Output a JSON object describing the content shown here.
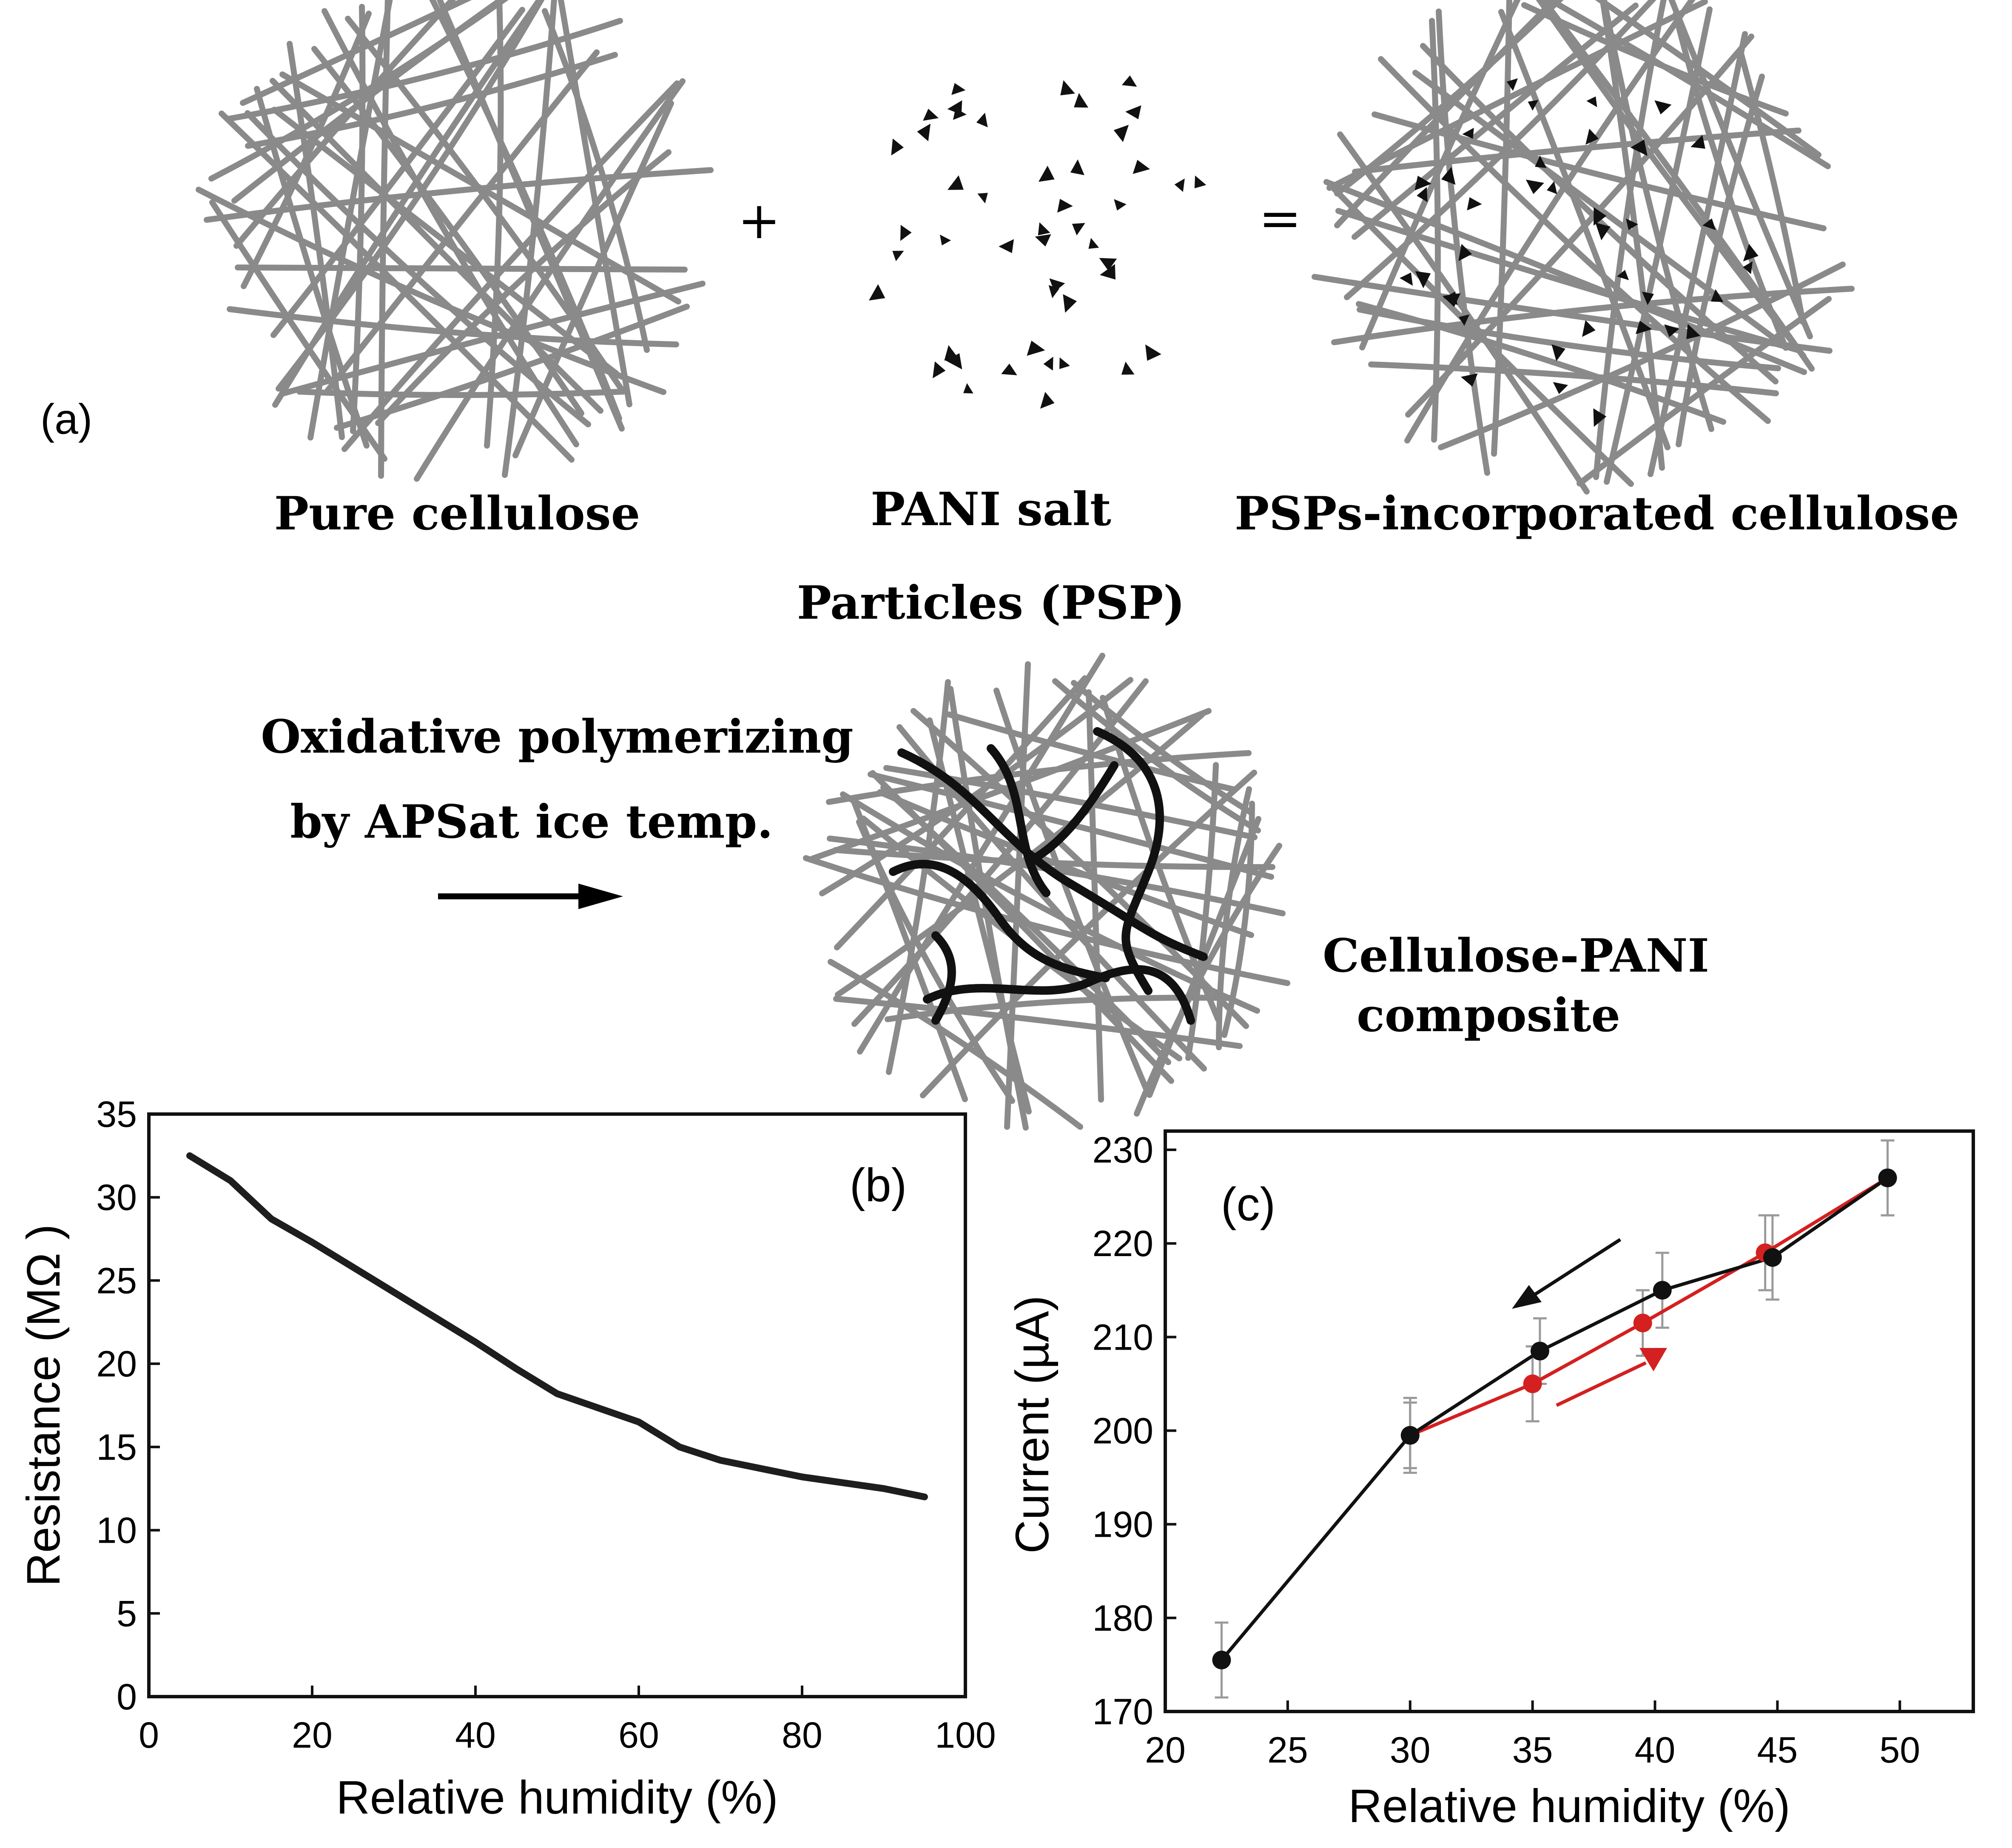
{
  "panel_a": {
    "label": "(a)",
    "plus": "+",
    "equals": "=",
    "pure_label": "Pure cellulose",
    "pani_label_1": "PANI salt",
    "pani_label_2": "Particles (PSP)",
    "psp_label": "PSPs-incorporated cellulose",
    "process_line_1": "Oxidative polymerizing",
    "process_line_2": "by APSat ice temp.",
    "composite_line_1": "Cellulose-PANI",
    "composite_line_2": "composite",
    "fiber_color": "#8a8a8a",
    "pani_color": "#111111"
  },
  "chart_data": [
    {
      "type": "line",
      "panel_label": "(b)",
      "xlabel": "Relative humidity (%)",
      "ylabel": "Resistance (MΩ )",
      "xlim": [
        0,
        100
      ],
      "ylim": [
        0,
        35
      ],
      "xticks": [
        0,
        20,
        40,
        60,
        80,
        100
      ],
      "yticks": [
        0,
        5,
        10,
        15,
        20,
        25,
        30,
        35
      ],
      "series": [
        {
          "name": "resistance",
          "color": "#1e1e1e",
          "x": [
            5,
            10,
            15,
            20,
            30,
            40,
            45,
            50,
            60,
            65,
            70,
            80,
            90,
            95
          ],
          "y": [
            32.5,
            31,
            28.7,
            27.3,
            24.3,
            21.3,
            19.7,
            18.2,
            16.5,
            15,
            14.2,
            13.2,
            12.5,
            12
          ]
        }
      ]
    },
    {
      "type": "scatter",
      "panel_label": "(c)",
      "xlabel": "Relative humidity (%)",
      "ylabel": "Current (µA)",
      "xlim": [
        20,
        53
      ],
      "ylim": [
        170,
        232
      ],
      "xticks": [
        20,
        25,
        30,
        35,
        40,
        45,
        50
      ],
      "yticks": [
        170,
        180,
        190,
        200,
        210,
        220,
        230
      ],
      "series": [
        {
          "name": "increasing humidity",
          "color": "#d42020",
          "x": [
            30,
            35,
            39.5,
            44.5,
            49.5
          ],
          "y": [
            199.5,
            205,
            211.5,
            219,
            227
          ],
          "err": [
            3.5,
            4,
            3.5,
            4,
            4
          ]
        },
        {
          "name": "decreasing humidity",
          "color": "#111111",
          "x": [
            22.3,
            30,
            35.3,
            40.3,
            44.8,
            49.5
          ],
          "y": [
            175.5,
            199.5,
            208.5,
            215,
            218.5,
            227
          ],
          "err": [
            4,
            4,
            3.5,
            4,
            4.5,
            4
          ]
        }
      ]
    }
  ]
}
